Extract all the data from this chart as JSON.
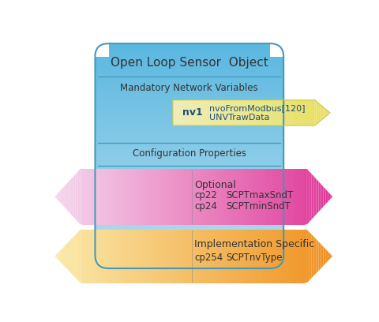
{
  "title": "Open Loop Sensor  Object",
  "section1_label": "Mandatory Network Variables",
  "section2_label": "Configuration Properties",
  "nv_label": "nv1",
  "nv_text": "nvoFromModbus[120]\nUNVTrawData",
  "optional_label": "Optional",
  "optional_entries": [
    [
      "cp22",
      "SCPTmaxSndT"
    ],
    [
      "cp24",
      "SCPTminSndT"
    ]
  ],
  "impl_label": "Implementation Specific",
  "impl_entries": [
    [
      "cp254",
      "SCPTnvType"
    ]
  ],
  "bg_color": "#ffffff",
  "box_top_color": "#5bb8e0",
  "box_bottom_color": "#b8dff0",
  "section_line_color": "#4499bb",
  "arrow_yellow_left": "#f0edb8",
  "arrow_yellow_right": "#e8e060",
  "arrow_pink_left": "#f5d8ee",
  "arrow_pink_right": "#e03898",
  "arrow_orange_left": "#faeaaa",
  "arrow_orange_right": "#f09020",
  "text_dark": "#333333",
  "text_blue": "#1a5080"
}
